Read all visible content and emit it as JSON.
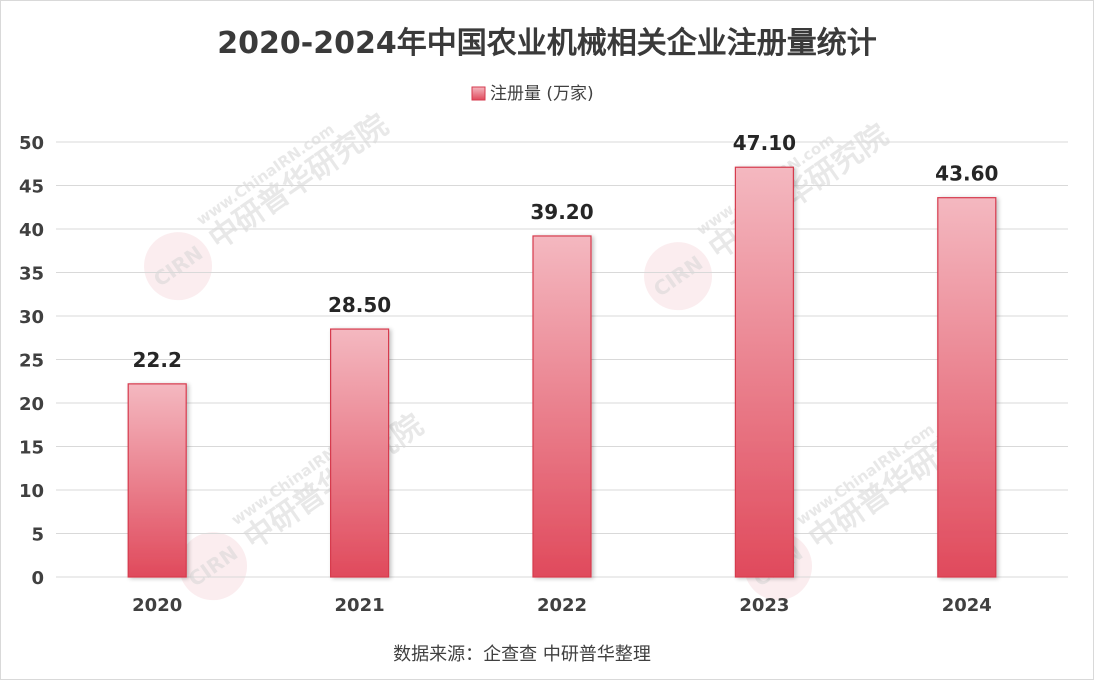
{
  "chart_data": {
    "type": "bar",
    "title": "2020-2024年中国农业机械相关企业注册量统计",
    "categories": [
      "2020",
      "2021",
      "2022",
      "2023",
      "2024"
    ],
    "series": [
      {
        "name": "注册量 (万家)",
        "values": [
          22.2,
          28.5,
          39.2,
          47.1,
          43.6
        ],
        "labels": [
          "22.2",
          "28.50",
          "39.20",
          "47.10",
          "43.60"
        ]
      }
    ],
    "ylim": [
      0,
      50
    ],
    "yticks": [
      0,
      5,
      10,
      15,
      20,
      25,
      30,
      35,
      40,
      45,
      50
    ],
    "grid": true,
    "legend": "top-center",
    "source": "数据来源：企查查 中研普华整理",
    "colors": {
      "bar_top": "#f4b8c0",
      "bar_bottom": "#e04a5c",
      "bar_edge": "#d63a4e",
      "grid": "#d9d9d9"
    },
    "watermark": {
      "url_text": "www.ChinaIRN.com",
      "brand_text": "中研普华研究院",
      "logo_text": "CIRN"
    }
  }
}
